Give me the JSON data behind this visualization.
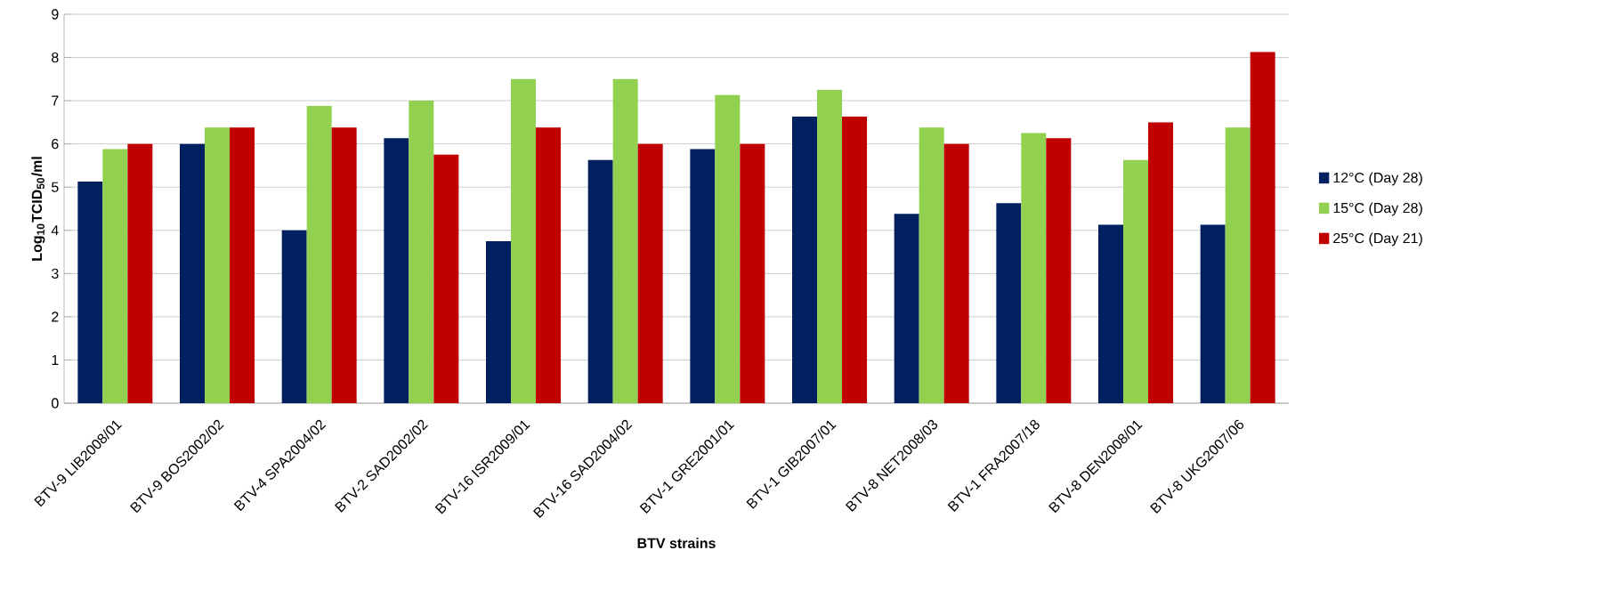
{
  "chart_data": {
    "type": "bar",
    "xlabel": "BTV strains",
    "ylabel": "**Log$_{10}$TCID$_{50}$/ml**",
    "categories": [
      "BTV-9 LIB2008/01",
      "BTV-9 BOS2002/02",
      "BTV-4 SPA2004/02",
      "BTV-2 SAD2002/02",
      "BTV-16 ISR2009/01",
      "BTV-16 SAD2004/02",
      "BTV-1 GRE2001/01",
      "BTV-1 GIB2007/01",
      "BTV-8 NET2008/03",
      "BTV-1 FRA2007/18",
      "BTV-8 DEN2008/01",
      "BTV-8 UKG2007/06"
    ],
    "series": [
      {
        "name": "12°C (Day 28)",
        "color": "#002060",
        "values": [
          5.13,
          6.0,
          4.0,
          6.13,
          3.75,
          5.63,
          5.88,
          6.63,
          4.38,
          4.63,
          4.13,
          4.13
        ]
      },
      {
        "name": "15°C (Day 28)",
        "color": "#92d050",
        "values": [
          5.88,
          6.38,
          6.88,
          7.0,
          7.5,
          7.5,
          7.13,
          7.25,
          6.38,
          6.25,
          5.63,
          6.38
        ]
      },
      {
        "name": "25°C (Day 21)",
        "color": "#c00000",
        "values": [
          6.0,
          6.38,
          6.38,
          5.75,
          6.38,
          6.0,
          6.0,
          6.63,
          6.0,
          6.13,
          6.5,
          8.13
        ]
      }
    ],
    "ylim": [
      0,
      9
    ],
    "yticks": [
      0,
      1,
      2,
      3,
      4,
      5,
      6,
      7,
      8,
      9
    ],
    "grid": "y",
    "legend": "right"
  }
}
